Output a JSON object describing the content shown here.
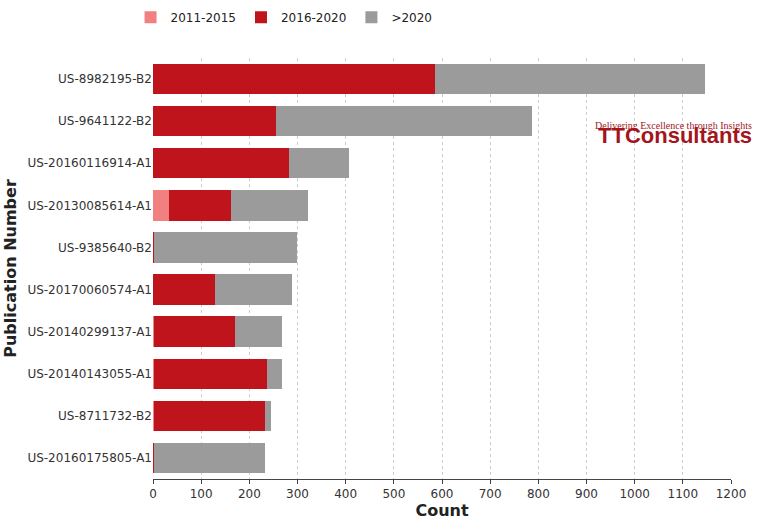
{
  "chart_data": {
    "type": "bar",
    "orientation": "horizontal",
    "stacked": true,
    "grid": true,
    "legend": "top left",
    "x_label": "Count",
    "y_label": "Publication Number",
    "categories": [
      "US-8982195-B2",
      "US-9641122-B2",
      "US-20160116914-A1",
      "US-20130085614-A1",
      "US-9385640-B2",
      "US-20170060574-A1",
      "US-20140299137-A1",
      "US-20140143055-A1",
      "US-8711732-B2",
      "US-20160175805-A1"
    ],
    "series": [
      {
        "name": "2011-2015",
        "color": "#f28080",
        "values": [
          0,
          0,
          0,
          34,
          0,
          0,
          2,
          3,
          3,
          0
        ]
      },
      {
        "name": "2016-2020",
        "color": "#c0141c",
        "values": [
          585,
          256,
          282,
          127,
          2,
          129,
          168,
          234,
          230,
          3
        ]
      },
      {
        "name": ">2020",
        "color": "#9b9b9b",
        "values": [
          560,
          530,
          125,
          161,
          297,
          159,
          97,
          30,
          11,
          229
        ]
      }
    ],
    "xlim": [
      0,
      1200
    ],
    "xticks": [
      0,
      100,
      200,
      300,
      400,
      500,
      600,
      700,
      800,
      900,
      1000,
      1100,
      1200
    ],
    "annotations": [
      {
        "text": "TTConsultants"
      },
      {
        "text": "Delivering Excellence through Insights"
      }
    ]
  }
}
